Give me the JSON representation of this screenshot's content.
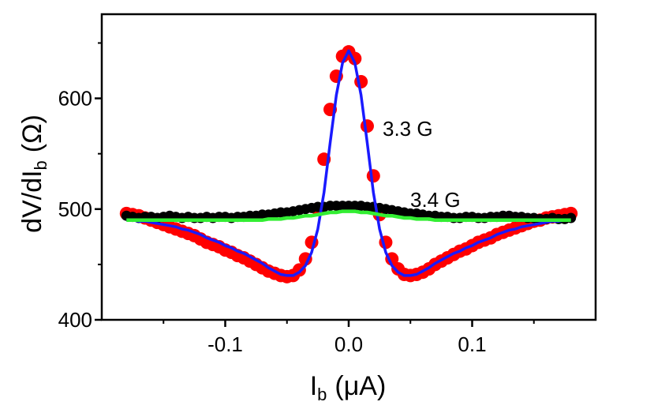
{
  "chart_data": {
    "type": "scatter_fit",
    "xlabel": "I",
    "xlabel_sub": "b",
    "xlabel_unit": "(μA)",
    "ylabel": "dV/dI",
    "ylabel_sub": "b",
    "ylabel_unit": "(Ω)",
    "annotations": [
      "3.3 G",
      "3.4 G"
    ],
    "xlim": [
      -0.2,
      0.2
    ],
    "xticks": [
      {
        "value": -0.1,
        "label": "-0.1"
      },
      {
        "value": 0,
        "label": "0.0"
      },
      {
        "value": 0.1,
        "label": "0.1"
      }
    ],
    "xminor": [
      -0.15,
      -0.05,
      0.05,
      0.15
    ],
    "ylim": [
      400,
      676
    ],
    "yticks": [
      400,
      500,
      600
    ],
    "yminor": [
      450,
      550,
      650
    ],
    "x": [
      -0.18,
      -0.175,
      -0.17,
      -0.165,
      -0.16,
      -0.155,
      -0.15,
      -0.145,
      -0.14,
      -0.135,
      -0.13,
      -0.125,
      -0.12,
      -0.115,
      -0.11,
      -0.105,
      -0.1,
      -0.095,
      -0.09,
      -0.085,
      -0.08,
      -0.075,
      -0.07,
      -0.065,
      -0.06,
      -0.055,
      -0.05,
      -0.045,
      -0.04,
      -0.035,
      -0.03,
      -0.025,
      -0.02,
      -0.015,
      -0.01,
      -0.005,
      0,
      0.005,
      0.01,
      0.015,
      0.02,
      0.025,
      0.03,
      0.035,
      0.04,
      0.045,
      0.05,
      0.055,
      0.06,
      0.065,
      0.07,
      0.075,
      0.08,
      0.085,
      0.09,
      0.095,
      0.1,
      0.105,
      0.11,
      0.115,
      0.12,
      0.125,
      0.13,
      0.135,
      0.14,
      0.145,
      0.15,
      0.155,
      0.16,
      0.165,
      0.17,
      0.175,
      0.18
    ],
    "series": [
      {
        "kind": "dots",
        "color": "#ff0000",
        "values": [
          496,
          495,
          494,
          492,
          490,
          488,
          486,
          484,
          482,
          480,
          478,
          476,
          473,
          470,
          468,
          466,
          463,
          461,
          458,
          456,
          453,
          450,
          447,
          444,
          442,
          440,
          439,
          440,
          445,
          455,
          470,
          500,
          545,
          590,
          620,
          638,
          642,
          636,
          615,
          575,
          530,
          495,
          470,
          455,
          446,
          441,
          440,
          441,
          443,
          446,
          450,
          453,
          456,
          459,
          462,
          464,
          467,
          470,
          472,
          474,
          477,
          479,
          481,
          483,
          485,
          487,
          489,
          490,
          492,
          493,
          494,
          495,
          496
        ]
      },
      {
        "kind": "dots",
        "color": "#000000",
        "values": [
          494,
          493,
          492,
          493,
          493,
          492,
          493,
          494,
          493,
          492,
          493,
          492,
          492,
          493,
          492,
          493,
          493,
          492,
          493,
          493,
          494,
          494,
          495,
          495,
          496,
          497,
          497,
          498,
          499,
          500,
          501,
          502,
          502,
          503,
          503,
          503,
          503,
          503,
          503,
          502,
          502,
          501,
          500,
          499,
          498,
          497,
          496,
          496,
          495,
          494,
          494,
          493,
          493,
          492,
          492,
          493,
          493,
          492,
          492,
          493,
          493,
          494,
          494,
          493,
          493,
          492,
          492,
          491,
          491,
          492,
          491,
          491,
          492
        ]
      },
      {
        "kind": "line",
        "color": "#1a1aff",
        "values": [
          490,
          490,
          489,
          489,
          488,
          487,
          486,
          485,
          484,
          482,
          481,
          479,
          477,
          474,
          472,
          470,
          467,
          465,
          462,
          460,
          457,
          454,
          451,
          447,
          444,
          441,
          440,
          440,
          443,
          449,
          461,
          482,
          515,
          560,
          603,
          632,
          643,
          632,
          603,
          560,
          515,
          482,
          461,
          449,
          443,
          440,
          440,
          441,
          444,
          447,
          451,
          454,
          457,
          460,
          462,
          465,
          467,
          470,
          472,
          474,
          477,
          479,
          481,
          482,
          484,
          485,
          486,
          487,
          488,
          489,
          489,
          490,
          490
        ]
      },
      {
        "kind": "line",
        "color": "#33ee33",
        "values": [
          490,
          490,
          490,
          490,
          490,
          490,
          490,
          490,
          490,
          490,
          490,
          490,
          490,
          490,
          490,
          490,
          490,
          490,
          490,
          490,
          490,
          490,
          490,
          491,
          491,
          491,
          492,
          492,
          493,
          494,
          494,
          495,
          496,
          497,
          497,
          498,
          498,
          498,
          497,
          497,
          496,
          495,
          494,
          494,
          493,
          492,
          492,
          491,
          491,
          491,
          490,
          490,
          490,
          490,
          490,
          490,
          490,
          490,
          490,
          490,
          490,
          490,
          490,
          490,
          490,
          490,
          490,
          490,
          490,
          490,
          490,
          490,
          490
        ]
      }
    ]
  }
}
